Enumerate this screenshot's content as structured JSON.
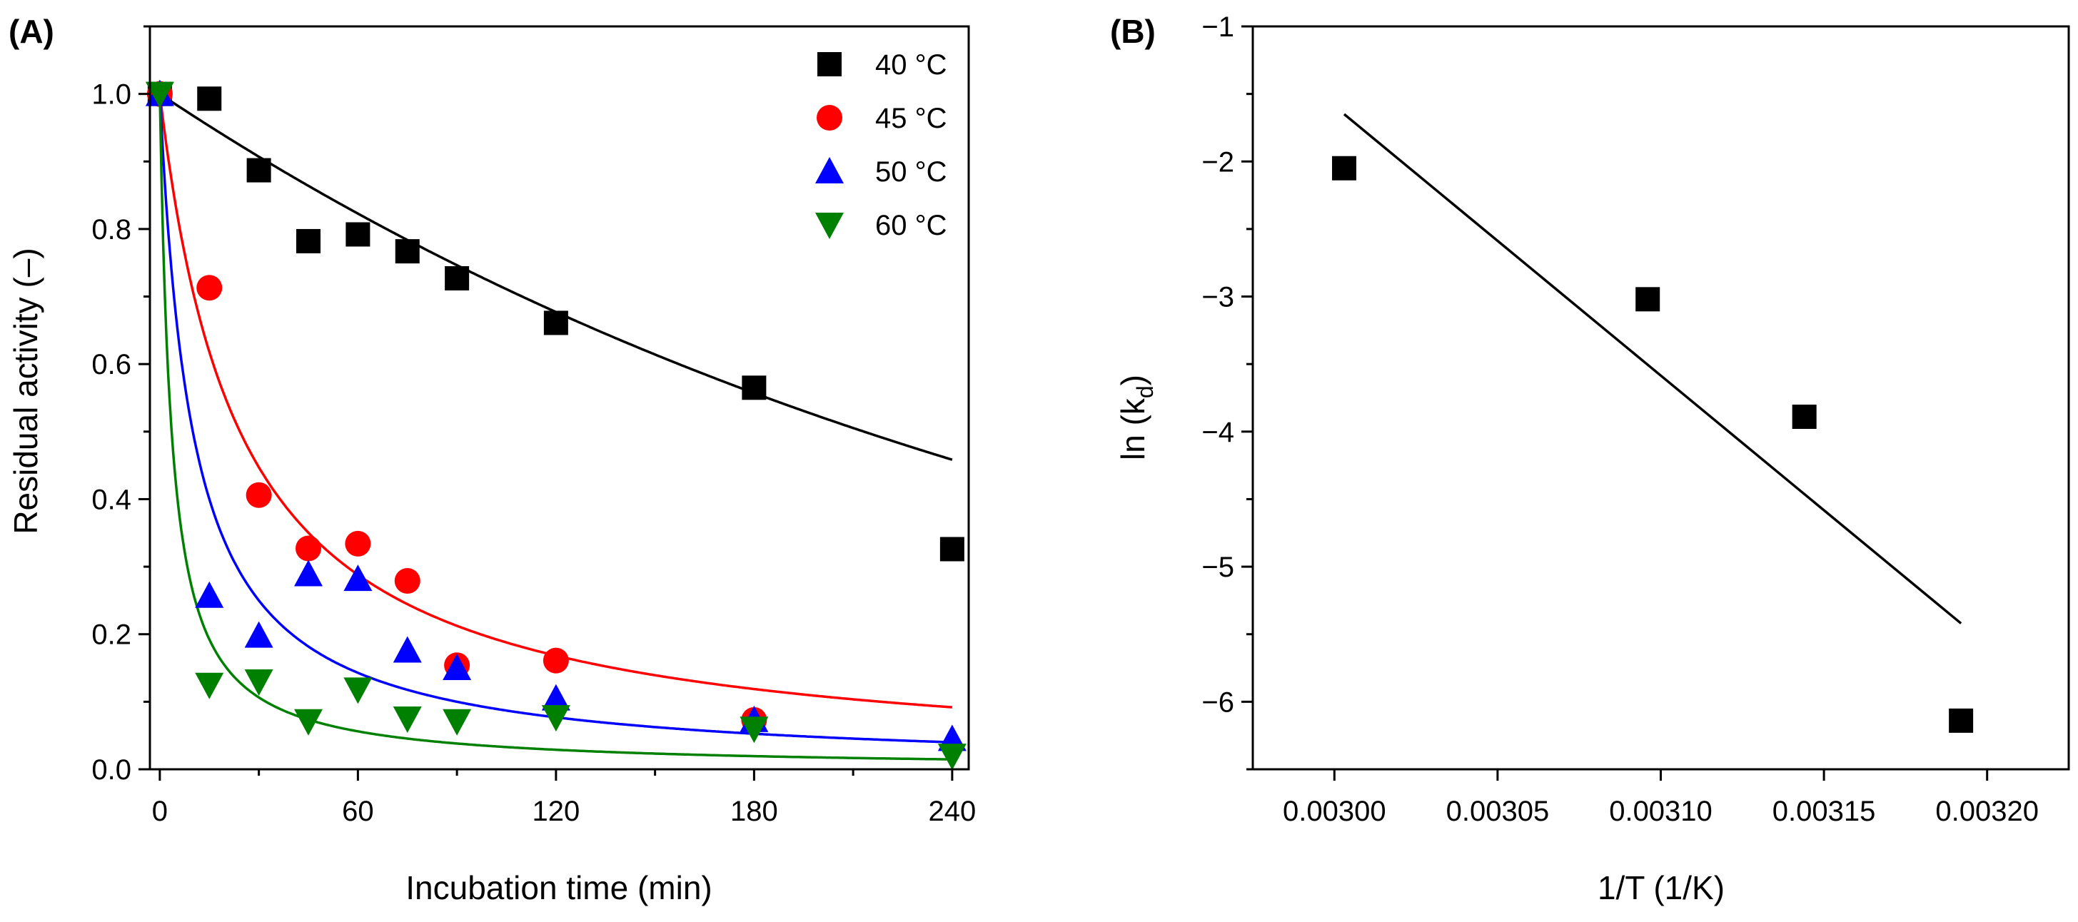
{
  "chart_data": [
    {
      "panel": "(A)",
      "type": "scatter",
      "xlabel": "Incubation time (min)",
      "ylabel": "Residual activity (–)",
      "xlim": [
        -3,
        245
      ],
      "ylim": [
        0,
        1.1
      ],
      "xticks": [
        0,
        60,
        120,
        180,
        240
      ],
      "yticks": [
        0.0,
        0.2,
        0.4,
        0.6,
        0.8,
        1.0
      ],
      "legend_position": "top-right",
      "series": [
        {
          "name": "40 °C",
          "color": "#000000",
          "marker": "square",
          "x": [
            0,
            15,
            30,
            45,
            60,
            75,
            90,
            120,
            180,
            240
          ],
          "y": [
            1.0,
            0.993,
            0.887,
            0.782,
            0.792,
            0.767,
            0.727,
            0.661,
            0.565,
            0.326
          ],
          "fit": {
            "model": "first-order decay",
            "k": 0.00325
          }
        },
        {
          "name": "45 °C",
          "color": "#ff0000",
          "marker": "circle",
          "x": [
            0,
            15,
            30,
            45,
            60,
            75,
            90,
            120,
            180
          ],
          "y": [
            1.0,
            0.713,
            0.406,
            0.327,
            0.334,
            0.279,
            0.154,
            0.161,
            0.073
          ],
          "fit": {
            "model": "second-order decay",
            "k": 0.0412
          }
        },
        {
          "name": "50 °C",
          "color": "#0000ff",
          "marker": "triangle-up",
          "x": [
            0,
            15,
            30,
            45,
            60,
            75,
            90,
            120,
            180,
            240
          ],
          "y": [
            1.0,
            0.257,
            0.198,
            0.289,
            0.282,
            0.176,
            0.15,
            0.105,
            0.073,
            0.045
          ],
          "fit": {
            "model": "second-order decay",
            "k": 0.1
          }
        },
        {
          "name": "60 °C",
          "color": "#008000",
          "marker": "triangle-down",
          "x": [
            0,
            15,
            30,
            45,
            60,
            75,
            90,
            120,
            180,
            240
          ],
          "y": [
            1.0,
            0.125,
            0.13,
            0.071,
            0.118,
            0.075,
            0.071,
            0.077,
            0.06,
            0.02
          ],
          "fit": {
            "model": "second-order decay",
            "k": 0.28
          }
        }
      ]
    },
    {
      "panel": "(B)",
      "type": "scatter",
      "xlabel": "1/T (1/K)",
      "ylabel_main": "ln (k",
      "ylabel_sub": "d",
      "ylabel_end": ")",
      "xlim": [
        0.002975,
        0.003225
      ],
      "ylim": [
        -6.5,
        -1.0
      ],
      "xticks": [
        "0.00300",
        "0.00305",
        "0.00310",
        "0.00315",
        "0.00320"
      ],
      "xtick_values": [
        0.003,
        0.00305,
        0.0031,
        0.00315,
        0.0032
      ],
      "yticks": [
        -6,
        -5,
        -4,
        -3,
        -2,
        -1
      ],
      "series": [
        {
          "name": "ln(kd)",
          "color": "#000000",
          "marker": "square",
          "x": [
            0.003003,
            0.003096,
            0.003144,
            0.003192
          ],
          "y": [
            -2.05,
            -3.02,
            -3.89,
            -6.14
          ]
        }
      ],
      "fit_line": {
        "x": [
          0.003003,
          0.003192
        ],
        "y": [
          -1.65,
          -5.42
        ]
      }
    }
  ]
}
